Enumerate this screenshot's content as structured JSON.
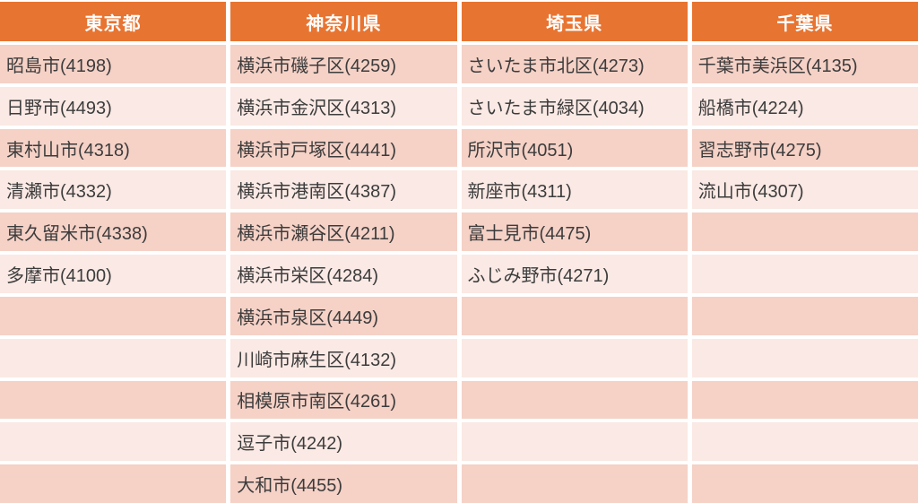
{
  "chart_data": {
    "type": "table",
    "columns": [
      "東京都",
      "神奈川県",
      "埼玉県",
      "千葉県"
    ],
    "rows": [
      [
        "昭島市(4198)",
        "横浜市磯子区(4259)",
        "さいたま市北区(4273)",
        "千葉市美浜区(4135)"
      ],
      [
        "日野市(4493)",
        "横浜市金沢区(4313)",
        "さいたま市緑区(4034)",
        "船橋市(4224)"
      ],
      [
        "東村山市(4318)",
        "横浜市戸塚区(4441)",
        "所沢市(4051)",
        "習志野市(4275)"
      ],
      [
        "清瀬市(4332)",
        "横浜市港南区(4387)",
        "新座市(4311)",
        "流山市(4307)"
      ],
      [
        "東久留米市(4338)",
        "横浜市瀬谷区(4211)",
        "富士見市(4475)",
        ""
      ],
      [
        "多摩市(4100)",
        "横浜市栄区(4284)",
        "ふじみ野市(4271)",
        ""
      ],
      [
        "",
        "横浜市泉区(4449)",
        "",
        ""
      ],
      [
        "",
        "川崎市麻生区(4132)",
        "",
        ""
      ],
      [
        "",
        "相模原市南区(4261)",
        "",
        ""
      ],
      [
        "",
        "逗子市(4242)",
        "",
        ""
      ],
      [
        "",
        "大和市(4455)",
        "",
        ""
      ]
    ]
  },
  "colors": {
    "header_bg": "#E87431",
    "header_text": "#FFFFFF",
    "row_odd_bg": "#F5D1C6",
    "row_even_bg": "#FAE9E4",
    "cell_text": "#3C3C3C",
    "separator": "#FFFFFF"
  }
}
